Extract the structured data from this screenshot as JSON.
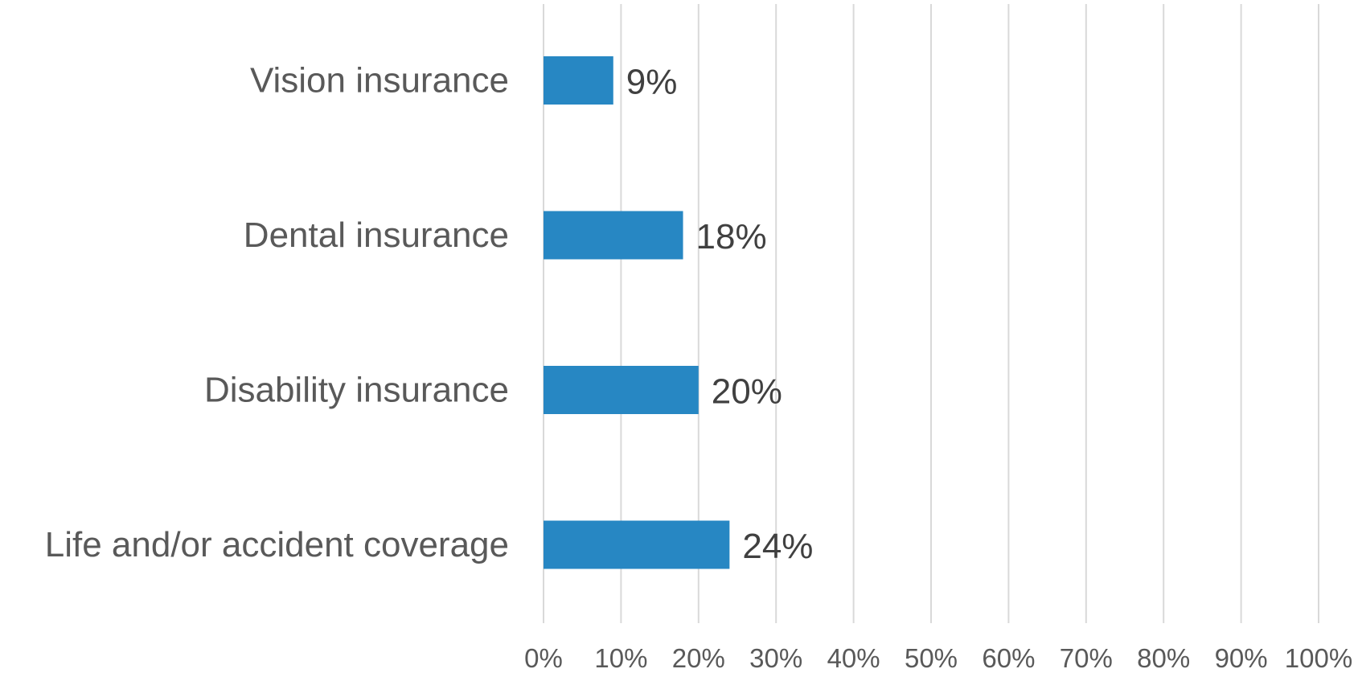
{
  "chart_data": {
    "type": "bar",
    "orientation": "horizontal",
    "title": "",
    "xlabel": "",
    "ylabel": "",
    "categories": [
      "Vision insurance",
      "Dental insurance",
      "Disability insurance",
      "Life and/or accident coverage"
    ],
    "values": [
      9,
      18,
      20,
      24
    ],
    "value_labels": [
      "9%",
      "18%",
      "20%",
      "24%"
    ],
    "xlim": [
      0,
      100
    ],
    "x_ticks": [
      0,
      10,
      20,
      30,
      40,
      50,
      60,
      70,
      80,
      90,
      100
    ],
    "x_tick_labels": [
      "0%",
      "10%",
      "20%",
      "30%",
      "40%",
      "50%",
      "60%",
      "70%",
      "80%",
      "90%",
      "100%"
    ],
    "grid": "vertical",
    "legend": "none",
    "bar_color": "#2787c3"
  }
}
